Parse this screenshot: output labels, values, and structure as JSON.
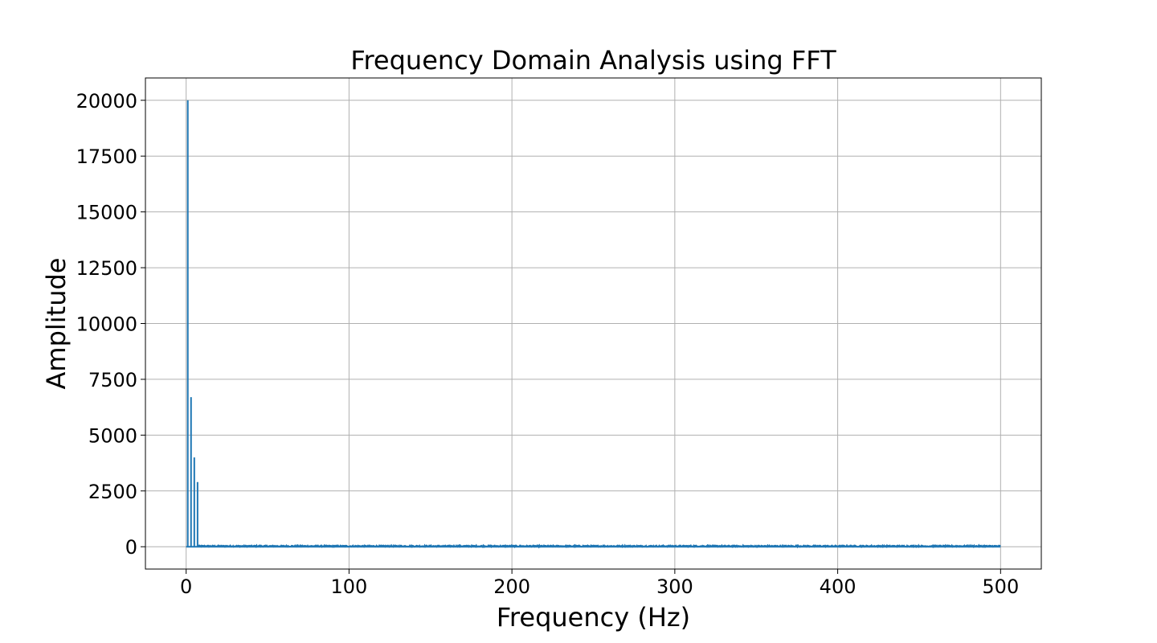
{
  "chart_data": {
    "type": "line",
    "title": "Frequency Domain Analysis using FFT",
    "xlabel": "Frequency (Hz)",
    "ylabel": "Amplitude",
    "xlim": [
      -25,
      525
    ],
    "ylim": [
      -1000,
      21000
    ],
    "xticks": [
      0,
      100,
      200,
      300,
      400,
      500
    ],
    "yticks": [
      0,
      2500,
      5000,
      7500,
      10000,
      12500,
      15000,
      17500,
      20000
    ],
    "grid": true,
    "series": [
      {
        "color": "#1f77b4",
        "x": [
          0,
          1,
          1,
          1,
          3,
          3,
          3,
          5,
          5,
          5,
          7,
          7,
          7,
          500
        ],
        "y": [
          0,
          0,
          20000,
          0,
          0,
          6700,
          0,
          0,
          4000,
          0,
          0,
          2900,
          0,
          0
        ]
      }
    ],
    "noise_floor": {
      "from": 7,
      "to": 500,
      "max_amplitude": 60
    }
  }
}
